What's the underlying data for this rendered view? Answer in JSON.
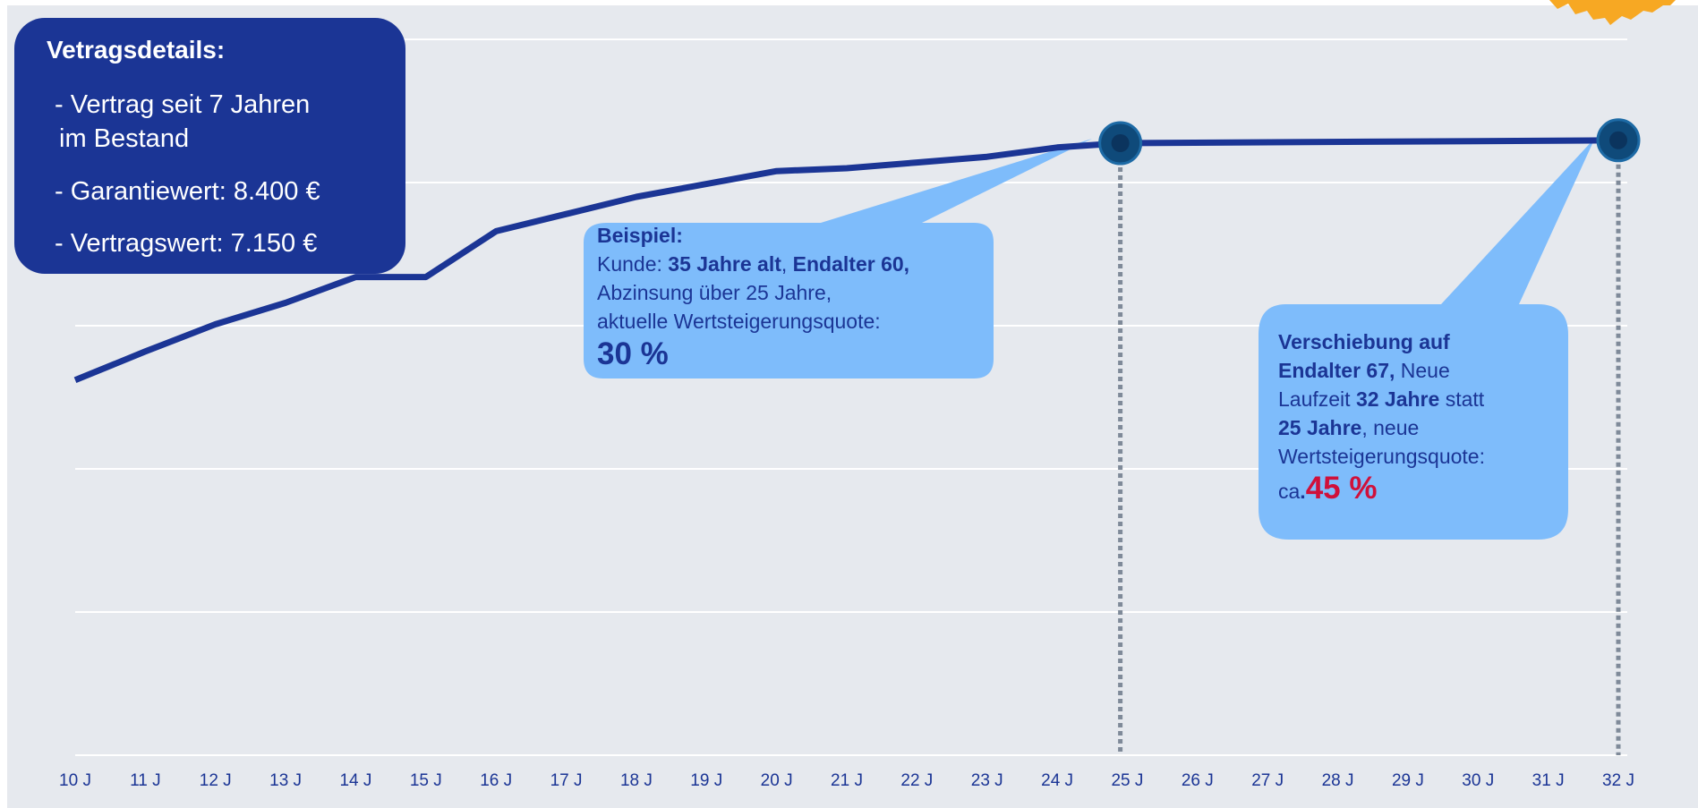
{
  "colors": {
    "background": "#e6e9ee",
    "line": "#1b3595",
    "info_box": "#1b3595",
    "callout": "#7ebcfb",
    "marker": "#0f4a7a",
    "dotted_line": "#7f8a99",
    "accent_red": "#d0103a",
    "badge": "#f7a823"
  },
  "info_box": {
    "title": "Vetragsdetails:",
    "lines": [
      "- Vertrag seit 7 Jahren",
      "im Bestand",
      "- Garantiewert: 8.400 €",
      "- Vertragswert:  7.150 €"
    ]
  },
  "callout_example": {
    "heading": "Beispiel:",
    "line1_prefix": "Kunde:  ",
    "line1_bold1": "35 Jahre alt",
    "line1_sep": ", ",
    "line1_bold2": "Endalter 60,",
    "line2": "Abzinsung über 25 Jahre,",
    "line3": "aktuelle Wertsteigerungsquote:",
    "percent": "30 %"
  },
  "callout_shift": {
    "line1": "Verschiebung auf",
    "line2_bold": "Endalter 67,",
    "line2_rest": "  Neue",
    "line3_prefix": "Laufzeit ",
    "line3_bold": "32 Jahre",
    "line3_rest": " statt",
    "line4_bold": "25 Jahre",
    "line4_rest": ", neue",
    "line5": "Wertsteigerungsquote:",
    "line6_prefix": "ca",
    "line6_dot": ".",
    "percent": "45 %"
  },
  "chart_data": {
    "type": "line",
    "categories": [
      "10 J",
      "11 J",
      "12 J",
      "13 J",
      "14 J",
      "15 J",
      "16 J",
      "17 J",
      "18 J",
      "19 J",
      "20 J",
      "21 J",
      "22 J",
      "23 J",
      "24 J",
      "25 J",
      "26 J",
      "27 J",
      "28 J",
      "29 J",
      "30 J",
      "31 J",
      "32 J"
    ],
    "x": [
      10,
      11,
      12,
      13,
      14,
      15,
      16,
      17,
      18,
      19,
      20,
      21,
      22,
      23,
      24,
      24.9,
      32
    ],
    "values": [
      52.4,
      56.4,
      60.2,
      63.2,
      66.8,
      66.8,
      73.2,
      75.6,
      78.0,
      79.8,
      81.6,
      82.0,
      82.8,
      83.6,
      84.9,
      85.5,
      85.9
    ],
    "ylim": [
      0,
      100
    ],
    "grid": true,
    "markers": [
      {
        "x": 24.9,
        "label": "25 J"
      },
      {
        "x": 32,
        "label": "32 J"
      }
    ]
  }
}
